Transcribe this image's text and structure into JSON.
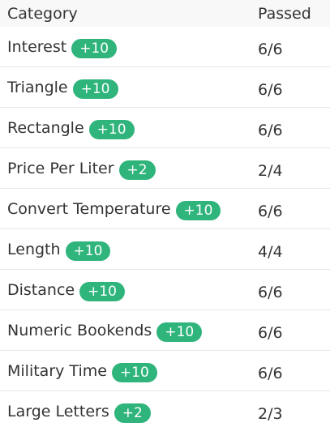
{
  "table": {
    "header": {
      "category": "Category",
      "passed": "Passed"
    },
    "rows": [
      {
        "category": "Interest",
        "badge": "+10",
        "passed": "6/6"
      },
      {
        "category": "Triangle",
        "badge": "+10",
        "passed": "6/6"
      },
      {
        "category": "Rectangle",
        "badge": "+10",
        "passed": "6/6"
      },
      {
        "category": "Price Per Liter",
        "badge": "+2",
        "passed": "2/4"
      },
      {
        "category": "Convert Temperature",
        "badge": "+10",
        "passed": "6/6"
      },
      {
        "category": "Length",
        "badge": "+10",
        "passed": "4/4"
      },
      {
        "category": "Distance",
        "badge": "+10",
        "passed": "6/6"
      },
      {
        "category": "Numeric Bookends",
        "badge": "+10",
        "passed": "6/6"
      },
      {
        "category": "Military Time",
        "badge": "+10",
        "passed": "6/6"
      },
      {
        "category": "Large Letters",
        "badge": "+2",
        "passed": "2/3"
      }
    ]
  },
  "colors": {
    "badge_bg": "#2fb47c",
    "header_bg": "#f8f8f8",
    "divider": "#e6e6e6",
    "text": "#333333"
  }
}
